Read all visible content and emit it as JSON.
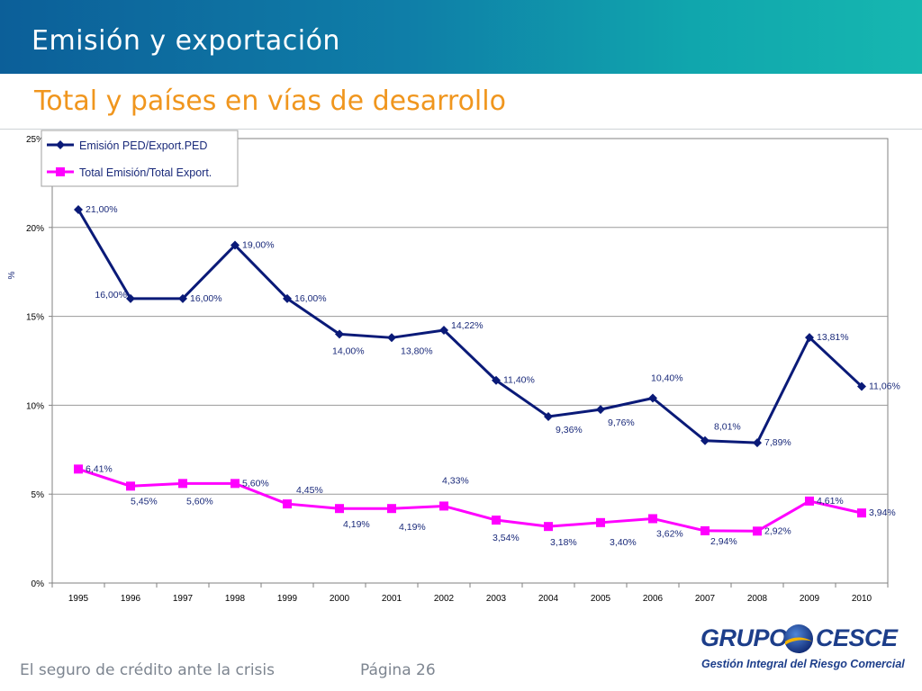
{
  "header": {
    "title": "Emisión y exportación"
  },
  "subtitle": "Total y países en vías de desarrollo",
  "footer": {
    "text": "El seguro de crédito ante la crisis",
    "page": "Página 26"
  },
  "logo": {
    "word_left": "GRUPO",
    "word_right": "CESCE",
    "tagline": "Gestión Integral del Riesgo Comercial"
  },
  "colors": {
    "series1": "#0a1a78",
    "series2": "#ff00ff",
    "header": "#0f7fa8",
    "subtitle": "#f0961e"
  },
  "chart_data": {
    "type": "line",
    "ylabel": "%",
    "ylim": [
      0,
      25
    ],
    "yticks": [
      0,
      5,
      10,
      15,
      20,
      25
    ],
    "ytick_labels": [
      "0%",
      "5%",
      "10%",
      "15%",
      "20%",
      "25%"
    ],
    "grid": true,
    "legend_position": "top-left",
    "categories": [
      "1995",
      "1996",
      "1997",
      "1998",
      "1999",
      "2000",
      "2001",
      "2002",
      "2003",
      "2004",
      "2005",
      "2006",
      "2007",
      "2008",
      "2009",
      "2010"
    ],
    "series": [
      {
        "name": "Emisión PED/Export.PED",
        "marker": "diamond",
        "values": [
          21.0,
          16.0,
          16.0,
          19.0,
          16.0,
          14.0,
          13.8,
          14.22,
          11.4,
          9.36,
          9.76,
          10.4,
          8.01,
          7.89,
          13.81,
          11.06
        ],
        "labels": [
          "21,00%",
          "16,00%",
          "16,00%",
          "19,00%",
          "16,00%",
          "14,00%",
          "13,80%",
          "14,22%",
          "11,40%",
          "9,36%",
          "9,76%",
          "10,40%",
          "8,01%",
          "7,89%",
          "13,81%",
          "11,06%"
        ]
      },
      {
        "name": "Total Emisión/Total Export.",
        "marker": "square",
        "values": [
          6.41,
          5.45,
          5.6,
          5.6,
          4.45,
          4.19,
          4.19,
          4.33,
          3.54,
          3.18,
          3.4,
          3.62,
          2.94,
          2.92,
          4.61,
          3.94
        ],
        "labels": [
          "6,41%",
          "5,45%",
          "5,60%",
          "5,60%",
          "4,45%",
          "4,19%",
          "4,19%",
          "4,33%",
          "3,54%",
          "3,18%",
          "3,40%",
          "3,62%",
          "2,94%",
          "2,92%",
          "4,61%",
          "3,94%"
        ]
      }
    ]
  }
}
